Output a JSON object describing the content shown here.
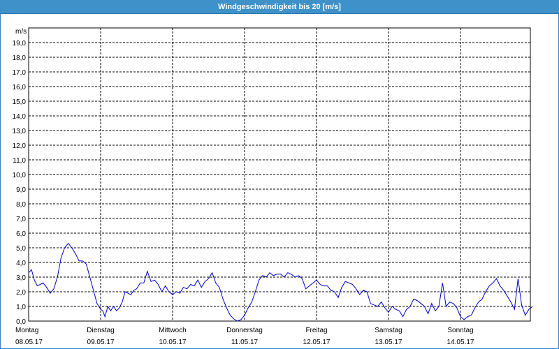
{
  "chart_data": {
    "type": "line",
    "title": "Windgeschwindigkeit bis 20 [m/s]",
    "unit_label": "m/s",
    "ylim": [
      0,
      20
    ],
    "y_ticks": [
      "0,0",
      "1,0",
      "2,0",
      "3,0",
      "4,0",
      "5,0",
      "6,0",
      "7,0",
      "8,0",
      "9,0",
      "10,0",
      "11,0",
      "12,0",
      "13,0",
      "14,0",
      "15,0",
      "16,0",
      "17,0",
      "18,0",
      "19,0"
    ],
    "x_range_days": [
      0,
      7
    ],
    "x_ticks": [
      {
        "day": "Montag",
        "date": "08.05.17"
      },
      {
        "day": "Dienstag",
        "date": "09.05.17"
      },
      {
        "day": "Mittwoch",
        "date": "10.05.17"
      },
      {
        "day": "Donnerstag",
        "date": "11.05.17"
      },
      {
        "day": "Freitag",
        "date": "12.05.17"
      },
      {
        "day": "Samstag",
        "date": "13.05.17"
      },
      {
        "day": "Sonntag",
        "date": "14.05.17"
      }
    ],
    "grid": true,
    "line_color": "#0000cc",
    "series": [
      {
        "x": [
          0,
          0.04,
          0.08,
          0.12,
          0.16,
          0.2,
          0.25,
          0.3,
          0.35,
          0.4,
          0.45,
          0.5,
          0.55,
          0.6,
          0.65,
          0.7,
          0.75,
          0.8,
          0.85,
          0.9,
          0.95,
          1.0,
          1.03,
          1.06,
          1.1,
          1.14,
          1.18,
          1.22,
          1.26,
          1.3,
          1.34,
          1.38,
          1.42,
          1.46,
          1.5,
          1.55,
          1.6,
          1.65,
          1.7,
          1.75,
          1.8,
          1.85,
          1.9,
          1.95,
          2.0,
          2.05,
          2.1,
          2.15,
          2.2,
          2.25,
          2.3,
          2.35,
          2.4,
          2.45,
          2.5,
          2.55,
          2.6,
          2.65,
          2.7,
          2.75,
          2.8,
          2.85,
          2.9,
          2.95,
          3.0,
          3.05,
          3.1,
          3.15,
          3.2,
          3.25,
          3.3,
          3.35,
          3.4,
          3.45,
          3.5,
          3.55,
          3.6,
          3.65,
          3.7,
          3.75,
          3.8,
          3.85,
          3.9,
          3.95,
          4.0,
          4.05,
          4.1,
          4.15,
          4.2,
          4.25,
          4.3,
          4.35,
          4.4,
          4.45,
          4.5,
          4.55,
          4.6,
          4.65,
          4.7,
          4.75,
          4.8,
          4.85,
          4.9,
          4.95,
          5.0,
          5.05,
          5.1,
          5.15,
          5.2,
          5.25,
          5.3,
          5.35,
          5.4,
          5.45,
          5.5,
          5.55,
          5.6,
          5.65,
          5.7,
          5.75,
          5.8,
          5.85,
          5.9,
          5.95,
          6.0,
          6.05,
          6.1,
          6.15,
          6.2,
          6.25,
          6.3,
          6.35,
          6.4,
          6.45,
          6.5,
          6.55,
          6.6,
          6.65,
          6.7,
          6.75,
          6.8,
          6.85,
          6.9,
          6.95,
          7.0
        ],
        "y": [
          3.3,
          3.5,
          2.8,
          2.4,
          2.5,
          2.6,
          2.3,
          1.9,
          2.2,
          3.0,
          4.3,
          5.0,
          5.3,
          5.0,
          4.6,
          4.1,
          4.1,
          3.9,
          3.0,
          2.1,
          1.2,
          0.8,
          0.7,
          0.3,
          1.0,
          0.7,
          1.0,
          0.7,
          0.9,
          1.3,
          2.0,
          1.9,
          1.8,
          2.1,
          2.2,
          2.6,
          2.6,
          3.4,
          2.7,
          2.8,
          2.5,
          2.0,
          2.4,
          2.0,
          1.8,
          2.0,
          1.9,
          2.3,
          2.2,
          2.5,
          2.4,
          2.8,
          2.3,
          2.7,
          2.9,
          3.3,
          2.6,
          2.3,
          1.5,
          0.9,
          0.4,
          0.15,
          0.0,
          0.1,
          0.4,
          0.9,
          1.3,
          2.0,
          2.8,
          3.1,
          3.0,
          3.3,
          3.1,
          3.2,
          3.2,
          3.0,
          3.3,
          3.2,
          3.0,
          3.1,
          2.9,
          2.2,
          2.4,
          2.6,
          2.8,
          2.5,
          2.4,
          2.4,
          2.1,
          2.0,
          1.6,
          2.3,
          2.7,
          2.6,
          2.5,
          2.2,
          1.8,
          2.1,
          2.0,
          1.2,
          1.1,
          1.0,
          1.3,
          0.9,
          0.6,
          1.0,
          0.8,
          0.7,
          0.3,
          0.8,
          1.0,
          1.5,
          1.4,
          1.2,
          1.0,
          0.5,
          1.2,
          0.7,
          1.0,
          2.6,
          1.0,
          1.3,
          1.2,
          0.9,
          0.3,
          0.1,
          0.3,
          0.4,
          0.9,
          1.3,
          1.5,
          2.0,
          2.4,
          2.6,
          2.9,
          2.4,
          2.1,
          1.7,
          1.3,
          0.8,
          2.9,
          1.1,
          0.4,
          0.8,
          1.0
        ]
      }
    ]
  }
}
